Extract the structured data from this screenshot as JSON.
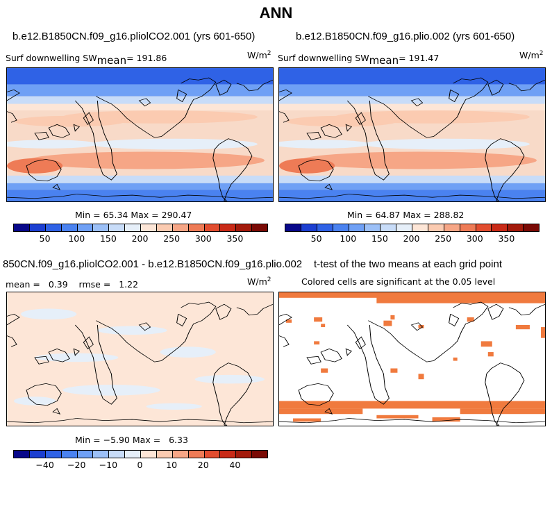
{
  "figure_title": "ANN",
  "panels": {
    "top_left": {
      "case": "b.e12.B1850CN.f09_g16.pliolCO2.001 (yrs 601-650)",
      "variable": "Surf downwelling SW",
      "mean_label": "mean",
      "mean_value": "= 191.86",
      "units": "W/m",
      "units_exp": "2",
      "minmax": "Min =  65.34 Max = 290.47"
    },
    "top_right": {
      "case": "b.e12.B1850CN.f09_g16.plio.002 (yrs 601-650)",
      "variable": "Surf downwelling SW",
      "mean_label": "mean",
      "mean_value": "= 191.47",
      "units": "W/m",
      "units_exp": "2",
      "minmax": "Min =  64.87 Max = 288.82"
    },
    "bottom_left": {
      "case": "850CN.f09_g16.pliolCO2.001 - b.e12.B1850CN.f09_g16.plio.002",
      "stats": "mean =   0.39    rmse =   1.22",
      "units": "W/m",
      "units_exp": "2",
      "minmax": "Min = −5.90 Max =   6.33"
    },
    "bottom_right": {
      "case": "t-test of the two means at each grid point",
      "note": "Colored cells are significant at the 0.05 level"
    }
  },
  "colorbars": {
    "absolute": {
      "labels": [
        "50",
        "100",
        "150",
        "200",
        "250",
        "300",
        "350"
      ],
      "colors": [
        "#08088a",
        "#1c3fd1",
        "#2f62e6",
        "#4a82f0",
        "#6fa0f5",
        "#9cc0f7",
        "#c8dcf8",
        "#e6eff9",
        "#fde6d7",
        "#fbcbb1",
        "#f6a686",
        "#ee7b56",
        "#e24d2f",
        "#c92a17",
        "#a31a0b",
        "#7a0a05"
      ]
    },
    "difference": {
      "labels": [
        "−40",
        "−20",
        "−10",
        "0",
        "10",
        "20",
        "40"
      ],
      "colors": [
        "#08088a",
        "#1c3fd1",
        "#2f62e6",
        "#4a82f0",
        "#6fa0f5",
        "#9cc0f7",
        "#c8dcf8",
        "#e6eff9",
        "#fde6d7",
        "#fbcbb1",
        "#f6a686",
        "#ee7b56",
        "#e24d2f",
        "#c92a17",
        "#a31a0b",
        "#7a0a05"
      ]
    }
  },
  "chart_data": [
    {
      "type": "heatmap",
      "title": "b.e12.B1850CN.f09_g16.pliolCO2.001 (yrs 601-650)",
      "variable": "Surf downwelling SW",
      "units": "W/m2",
      "mean": 191.86,
      "min": 65.34,
      "max": 290.47,
      "colorbar_ticks": [
        50,
        100,
        150,
        200,
        250,
        300,
        350
      ]
    },
    {
      "type": "heatmap",
      "title": "b.e12.B1850CN.f09_g16.plio.002 (yrs 601-650)",
      "variable": "Surf downwelling SW",
      "units": "W/m2",
      "mean": 191.47,
      "min": 64.87,
      "max": 288.82,
      "colorbar_ticks": [
        50,
        100,
        150,
        200,
        250,
        300,
        350
      ]
    },
    {
      "type": "heatmap",
      "title": "850CN.f09_g16.pliolCO2.001 - b.e12.B1850CN.f09_g16.plio.002",
      "units": "W/m2",
      "mean": 0.39,
      "rmse": 1.22,
      "min": -5.9,
      "max": 6.33,
      "colorbar_ticks": [
        -40,
        -20,
        -10,
        0,
        10,
        20,
        40
      ]
    },
    {
      "type": "heatmap",
      "title": "t-test of the two means at each grid point",
      "note": "Colored cells are significant at the 0.05 level",
      "significant_color": "#f07a3e"
    }
  ]
}
